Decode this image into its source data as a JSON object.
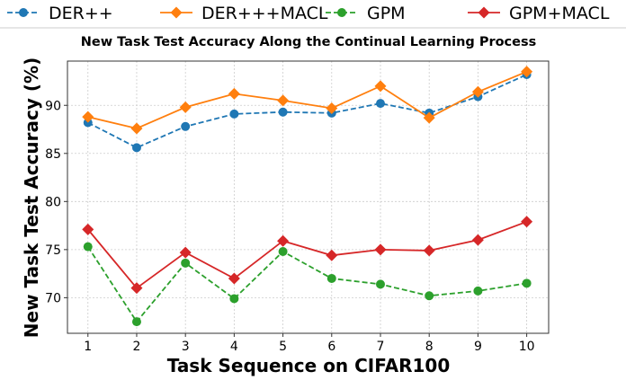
{
  "chart_data": {
    "type": "line",
    "title": "New Task Test Accuracy Along the Continual Learning Process",
    "xlabel": "Task Sequence on CIFAR100",
    "ylabel": "New Task Test Accuracy (%)",
    "x": [
      1,
      2,
      3,
      4,
      5,
      6,
      7,
      8,
      9,
      10
    ],
    "xlim": [
      0.58,
      10.45
    ],
    "ylim": [
      66.3,
      94.6
    ],
    "yticks": [
      70,
      75,
      80,
      85,
      90
    ],
    "grid": true,
    "legend_placement": "top, outside",
    "series": [
      {
        "name": "DER++",
        "color": "#1f77b4",
        "dash": true,
        "marker": "circle",
        "values": [
          88.2,
          85.6,
          87.8,
          89.1,
          89.3,
          89.2,
          90.2,
          89.2,
          90.9,
          93.2
        ]
      },
      {
        "name": "DER+++MACL",
        "color": "#ff7f0e",
        "dash": false,
        "marker": "diamond",
        "values": [
          88.8,
          87.6,
          89.8,
          91.2,
          90.5,
          89.7,
          92.0,
          88.7,
          91.4,
          93.5
        ]
      },
      {
        "name": "GPM",
        "color": "#2ca02c",
        "dash": true,
        "marker": "circle",
        "values": [
          75.3,
          67.5,
          73.6,
          69.9,
          74.8,
          72.0,
          71.4,
          70.2,
          70.7,
          71.5
        ]
      },
      {
        "name": "GPM+MACL",
        "color": "#d62728",
        "dash": false,
        "marker": "diamond",
        "values": [
          77.1,
          71.0,
          74.7,
          72.0,
          75.9,
          74.4,
          75.0,
          74.9,
          76.0,
          77.9
        ]
      }
    ]
  }
}
